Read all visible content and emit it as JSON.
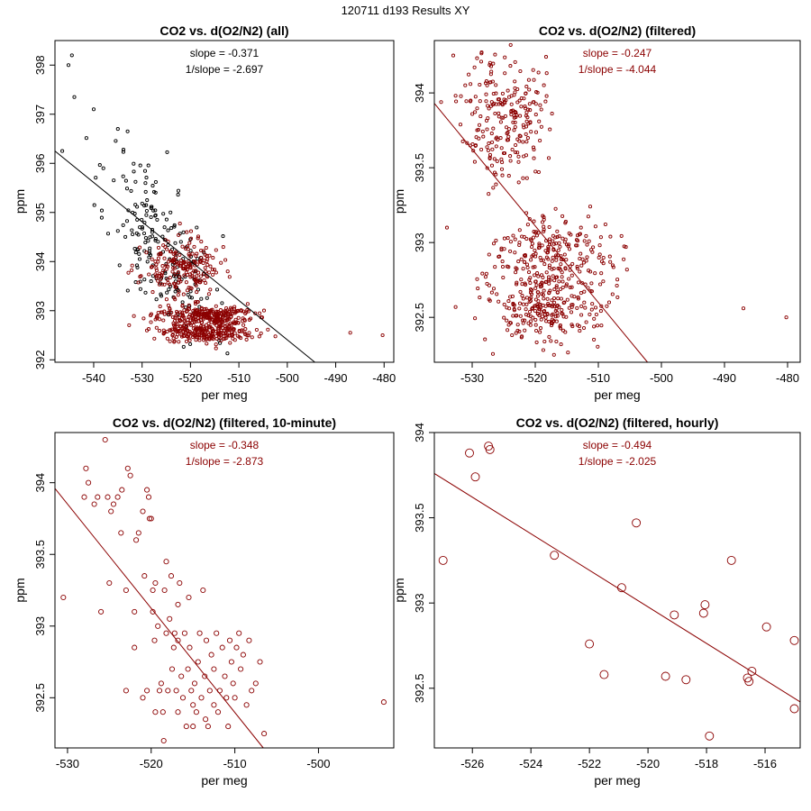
{
  "page": {
    "title": "120711   d193   Results XY"
  },
  "colors": {
    "dark_red": "#8b0000",
    "black": "#000000"
  },
  "chart_data": [
    {
      "type": "scatter",
      "title": "CO2 vs. d(O2/N2) (all)",
      "xlabel": "per meg",
      "ylabel": "ppm",
      "xlim": [
        -548,
        -478
      ],
      "ylim": [
        391.95,
        398.5
      ],
      "xticks": [
        -540,
        -530,
        -520,
        -510,
        -500,
        -490,
        -480
      ],
      "yticks": [
        392,
        393,
        394,
        395,
        396,
        397,
        398
      ],
      "stats": {
        "slope": "slope = -0.371",
        "inv_slope": "1/slope = -2.697"
      },
      "stat_color": "#000000",
      "fit_color": "#000000",
      "fit": {
        "x1": -548,
        "y1": 396.25,
        "x2": -494.3,
        "y2": 391.95
      },
      "series": [
        {
          "name": "unfiltered",
          "color": "#000000",
          "n": 200,
          "seed": 11,
          "mean_x": -526,
          "sd_x": 5.5,
          "mean_y": 394.3,
          "sd_y": 0.75,
          "slope": -0.1,
          "extra": [
            [
              -544.5,
              398.2
            ],
            [
              -545.2,
              398.0
            ],
            [
              -544,
              397.35
            ],
            [
              -540,
              397.1
            ],
            [
              -546.5,
              396.25
            ],
            [
              -535,
              396.7
            ],
            [
              -533,
              396.65
            ],
            [
              -538,
              395.9
            ]
          ]
        },
        {
          "name": "filtered",
          "color": "#8b0000",
          "n": 700,
          "seed": 23,
          "clusters": [
            {
              "mean_x": -522,
              "sd_x": 4,
              "mean_y": 393.85,
              "sd_y": 0.3,
              "w": 0.3
            },
            {
              "mean_x": -517,
              "sd_x": 5,
              "mean_y": 392.9,
              "sd_y": 0.1,
              "w": 0.35
            },
            {
              "mean_x": -517,
              "sd_x": 5,
              "mean_y": 392.55,
              "sd_y": 0.1,
              "w": 0.35
            }
          ],
          "extra": [
            [
              -487,
              392.55
            ],
            [
              -480.3,
              392.5
            ]
          ]
        }
      ]
    },
    {
      "type": "scatter",
      "title": "CO2 vs. d(O2/N2) (filtered)",
      "xlabel": "per meg",
      "ylabel": "ppm",
      "xlim": [
        -536,
        -478
      ],
      "ylim": [
        392.2,
        394.35
      ],
      "xticks": [
        -530,
        -520,
        -510,
        -500,
        -490,
        -480
      ],
      "yticks": [
        392.5,
        393.0,
        393.5,
        394.0
      ],
      "stats": {
        "slope": "slope = -0.247",
        "inv_slope": "1/slope = -4.044"
      },
      "stat_color": "#8b0000",
      "fit_color": "#8b0000",
      "fit": {
        "x1": -536,
        "y1": 393.93,
        "x2": -502.2,
        "y2": 392.2
      },
      "series": [
        {
          "name": "filtered",
          "color": "#8b0000",
          "n": 700,
          "seed": 37,
          "clusters": [
            {
              "mean_x": -525,
              "sd_x": 3.2,
              "mean_y": 393.85,
              "sd_y": 0.22,
              "w": 0.33
            },
            {
              "mean_x": -517,
              "sd_x": 5,
              "mean_y": 392.94,
              "sd_y": 0.13,
              "w": 0.33
            },
            {
              "mean_x": -518,
              "sd_x": 4.5,
              "mean_y": 392.55,
              "sd_y": 0.12,
              "w": 0.34
            }
          ],
          "extra": [
            [
              -487,
              392.56
            ],
            [
              -480.2,
              392.5
            ],
            [
              -534,
              393.1
            ],
            [
              -533,
              394.25
            ]
          ]
        }
      ]
    },
    {
      "type": "scatter",
      "title": "CO2 vs. d(O2/N2) (filtered, 10-minute)",
      "xlabel": "per meg",
      "ylabel": "ppm",
      "xlim": [
        -531.5,
        -491
      ],
      "ylim": [
        392.15,
        394.35
      ],
      "xticks": [
        -530,
        -520,
        -510,
        -500
      ],
      "yticks": [
        392.5,
        393.0,
        393.5,
        394.0
      ],
      "stats": {
        "slope": "slope = -0.348",
        "inv_slope": "1/slope = -2.873"
      },
      "stat_color": "#8b0000",
      "fit_color": "#8b0000",
      "fit": {
        "x1": -531.5,
        "y1": 393.96,
        "x2": -506.6,
        "y2": 392.15
      },
      "series": [
        {
          "name": "10-minute",
          "color": "#8b0000",
          "marker_r": 2.6,
          "points": [
            [
              -530.5,
              393.2
            ],
            [
              -528,
              393.9
            ],
            [
              -527.8,
              394.1
            ],
            [
              -527.5,
              394.0
            ],
            [
              -526.8,
              393.85
            ],
            [
              -526.4,
              393.9
            ],
            [
              -526,
              393.1
            ],
            [
              -525.5,
              394.3
            ],
            [
              -525.2,
              393.9
            ],
            [
              -525,
              393.3
            ],
            [
              -524.8,
              393.8
            ],
            [
              -524.5,
              393.85
            ],
            [
              -524,
              393.9
            ],
            [
              -523.6,
              393.65
            ],
            [
              -523.5,
              393.95
            ],
            [
              -523,
              393.25
            ],
            [
              -522.8,
              394.1
            ],
            [
              -522.5,
              394.05
            ],
            [
              -522,
              393.1
            ],
            [
              -521.8,
              393.6
            ],
            [
              -521.5,
              393.65
            ],
            [
              -521,
              393.8
            ],
            [
              -520.8,
              393.35
            ],
            [
              -520.5,
              393.95
            ],
            [
              -520.3,
              393.9
            ],
            [
              -520.2,
              393.75
            ],
            [
              -520,
              393.75
            ],
            [
              -519.8,
              393.1
            ],
            [
              -519.6,
              392.9
            ],
            [
              -519.5,
              393.3
            ],
            [
              -519.2,
              393.0
            ],
            [
              -519,
              392.55
            ],
            [
              -518.8,
              392.6
            ],
            [
              -518.6,
              392.4
            ],
            [
              -518.4,
              393.25
            ],
            [
              -518.2,
              392.95
            ],
            [
              -518,
              392.55
            ],
            [
              -517.8,
              393.05
            ],
            [
              -517.5,
              392.7
            ],
            [
              -517.3,
              392.85
            ],
            [
              -517,
              392.55
            ],
            [
              -516.8,
              392.9
            ],
            [
              -516.6,
              393.3
            ],
            [
              -516.4,
              392.65
            ],
            [
              -516.2,
              392.5
            ],
            [
              -516,
              392.95
            ],
            [
              -515.8,
              392.3
            ],
            [
              -515.6,
              392.7
            ],
            [
              -515.4,
              392.85
            ],
            [
              -515.2,
              392.55
            ],
            [
              -515,
              392.3
            ],
            [
              -514.8,
              392.6
            ],
            [
              -514.6,
              392.4
            ],
            [
              -514.4,
              392.75
            ],
            [
              -514.2,
              392.95
            ],
            [
              -514,
              392.5
            ],
            [
              -513.8,
              393.25
            ],
            [
              -513.6,
              392.65
            ],
            [
              -513.4,
              392.9
            ],
            [
              -513.2,
              392.3
            ],
            [
              -513,
              392.55
            ],
            [
              -512.8,
              392.8
            ],
            [
              -512.5,
              392.7
            ],
            [
              -512.2,
              392.95
            ],
            [
              -512,
              392.4
            ],
            [
              -511.8,
              392.55
            ],
            [
              -511.5,
              392.85
            ],
            [
              -511.2,
              392.65
            ],
            [
              -511,
              392.5
            ],
            [
              -510.8,
              392.3
            ],
            [
              -510.6,
              392.9
            ],
            [
              -510.4,
              392.75
            ],
            [
              -510.2,
              392.6
            ],
            [
              -510,
              392.5
            ],
            [
              -509.8,
              392.85
            ],
            [
              -509.5,
              392.95
            ],
            [
              -509.3,
              392.7
            ],
            [
              -509,
              392.8
            ],
            [
              -508.6,
              392.45
            ],
            [
              -508.3,
              392.9
            ],
            [
              -508,
              392.55
            ],
            [
              -507.5,
              392.6
            ],
            [
              -507,
              392.75
            ],
            [
              -506.5,
              392.25
            ],
            [
              -520.5,
              392.55
            ],
            [
              -521,
              392.5
            ],
            [
              -522,
              392.85
            ],
            [
              -523,
              392.55
            ],
            [
              -519.5,
              392.4
            ],
            [
              -518.5,
              392.2
            ],
            [
              -516.8,
              392.4
            ],
            [
              -515,
              392.45
            ],
            [
              -513.5,
              392.35
            ],
            [
              -512.5,
              392.45
            ],
            [
              -517.2,
              392.95
            ],
            [
              -519.8,
              393.25
            ],
            [
              -518.2,
              393.45
            ],
            [
              -517.6,
              393.35
            ],
            [
              -516.8,
              393.15
            ],
            [
              -515.5,
              393.2
            ],
            [
              -492.2,
              392.47
            ]
          ]
        }
      ]
    },
    {
      "type": "scatter",
      "title": "CO2 vs. d(O2/N2) (filtered, hourly)",
      "xlabel": "per meg",
      "ylabel": "ppm",
      "xlim": [
        -527.3,
        -514.8
      ],
      "ylim": [
        392.15,
        394.0
      ],
      "xticks": [
        -526,
        -524,
        -522,
        -520,
        -518,
        -516
      ],
      "yticks": [
        392.5,
        393.0,
        393.5,
        394.0
      ],
      "stats": {
        "slope": "slope = -0.494",
        "inv_slope": "1/slope = -2.025"
      },
      "stat_color": "#8b0000",
      "fit_color": "#8b0000",
      "fit": {
        "x1": -527.3,
        "y1": 393.76,
        "x2": -514.8,
        "y2": 392.42
      },
      "series": [
        {
          "name": "hourly",
          "color": "#8b0000",
          "marker_r": 4.5,
          "points": [
            [
              -527,
              393.25
            ],
            [
              -526.1,
              393.88
            ],
            [
              -525.9,
              393.74
            ],
            [
              -525.45,
              393.92
            ],
            [
              -525.4,
              393.9
            ],
            [
              -523.2,
              393.28
            ],
            [
              -522,
              392.76
            ],
            [
              -521.5,
              392.58
            ],
            [
              -520.9,
              393.09
            ],
            [
              -520.4,
              393.47
            ],
            [
              -519.4,
              392.57
            ],
            [
              -519.1,
              392.93
            ],
            [
              -518.7,
              392.55
            ],
            [
              -518.1,
              392.94
            ],
            [
              -518.05,
              392.99
            ],
            [
              -517.9,
              392.22
            ],
            [
              -517.15,
              393.25
            ],
            [
              -516.6,
              392.56
            ],
            [
              -516.55,
              392.54
            ],
            [
              -516.45,
              392.6
            ],
            [
              -515.95,
              392.86
            ],
            [
              -515,
              392.78
            ],
            [
              -515.0,
              392.38
            ]
          ]
        }
      ]
    }
  ]
}
